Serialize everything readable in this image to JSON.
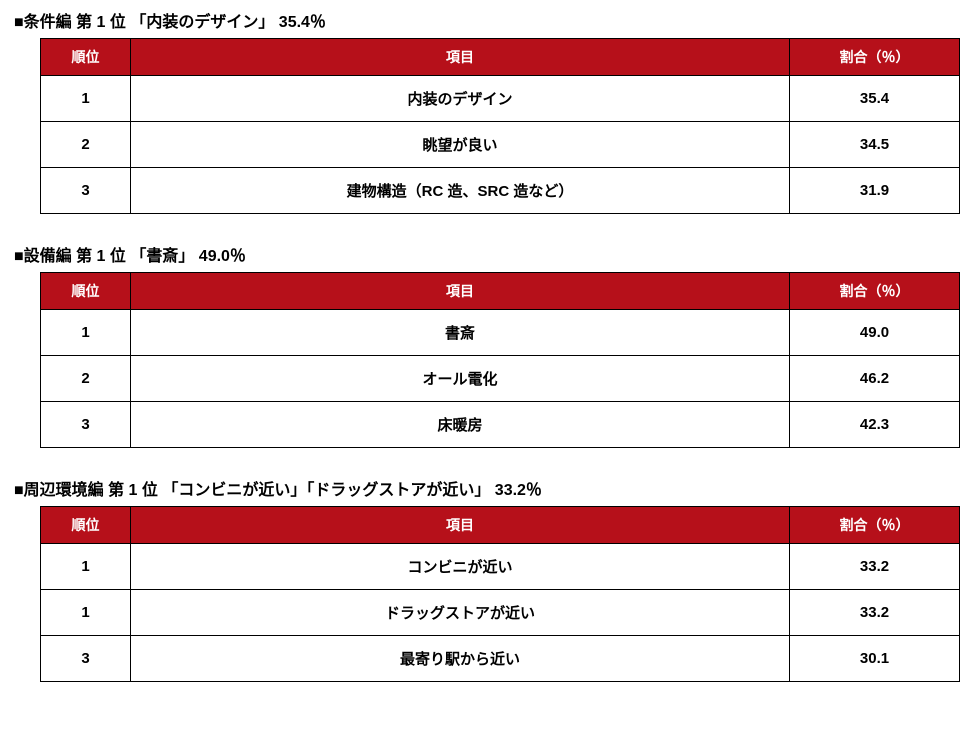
{
  "colors": {
    "header_bg": "#b6101a",
    "header_fg": "#ffffff",
    "border": "#000000",
    "text": "#000000"
  },
  "columns": {
    "rank": "順位",
    "item": "項目",
    "ratio": "割合（％）"
  },
  "sections": [
    {
      "title": "■条件編  第 1 位 「内装のデザイン」 35.4％",
      "rows": [
        {
          "rank": "1",
          "item": "内装のデザイン",
          "ratio": "35.4"
        },
        {
          "rank": "2",
          "item": "眺望が良い",
          "ratio": "34.5"
        },
        {
          "rank": "3",
          "item": "建物構造（RC 造、SRC 造など）",
          "ratio": "31.9"
        }
      ]
    },
    {
      "title": "■設備編  第 1 位 「書斎」 49.0％",
      "rows": [
        {
          "rank": "1",
          "item": "書斎",
          "ratio": "49.0"
        },
        {
          "rank": "2",
          "item": "オール電化",
          "ratio": "46.2"
        },
        {
          "rank": "3",
          "item": "床暖房",
          "ratio": "42.3"
        }
      ]
    },
    {
      "title": "■周辺環境編  第 1 位 「コンビニが近い」「ドラッグストアが近い」 33.2％",
      "rows": [
        {
          "rank": "1",
          "item": "コンビニが近い",
          "ratio": "33.2"
        },
        {
          "rank": "1",
          "item": "ドラッグストアが近い",
          "ratio": "33.2"
        },
        {
          "rank": "3",
          "item": "最寄り駅から近い",
          "ratio": "30.1"
        }
      ]
    }
  ]
}
